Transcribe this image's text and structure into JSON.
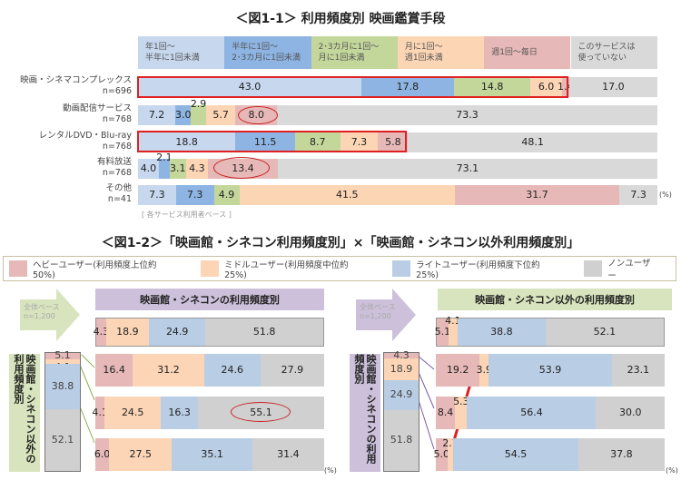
{
  "fig1": {
    "title": "＜図1-1＞ 利用頻度別 映画鑑賞手段",
    "note": "[ 各サービス利用者ベース ]",
    "unit": "(%)"
  },
  "fig2": {
    "title": "＜図1-2＞「映画館・シネコン利用頻度別」×「映画館・シネコン以外利用頻度別」",
    "unit": "(%)",
    "legend": [
      "ヘビーユーザー(利用頻度上位約50%)",
      "ミドルユーザー(利用頻度中位約25%)",
      "ライトユーザー(利用頻度下位約25%)",
      "ノンユーザー"
    ],
    "left": {
      "header": "映画館・シネコンの利用頻度別",
      "base": "全体ベース\nn=1,200",
      "vlabel": "映画館・シネコン以外の利用頻度別"
    },
    "right": {
      "header": "映画館・シネコン以外の利用頻度別",
      "base": "全体ベース\nn=1,200",
      "vlabel": "映画館・シネコンの利用頻度別"
    }
  },
  "chart_data": [
    {
      "type": "bar",
      "stacked": true,
      "orientation": "horizontal",
      "categories": [
        "映画・シネマコンプレックス\nn=696",
        "動画配信サービス\nn=768",
        "レンタルDVD・Blu-ray\nn=768",
        "有料放送\nn=768",
        "その他\nn=41"
      ],
      "series": [
        {
          "name": "年1回～\n半年に1回未満",
          "color": "#c6d7ee",
          "values": [
            43.0,
            7.2,
            18.8,
            4.0,
            7.3
          ]
        },
        {
          "name": "半年に1回～\n2･3カ月に1回未満",
          "color": "#8db4e2",
          "values": [
            17.8,
            3.0,
            11.5,
            2.1,
            7.3
          ]
        },
        {
          "name": "2･3カ月に1回～\n月に1回未満",
          "color": "#c4d79b",
          "values": [
            14.8,
            2.9,
            8.7,
            3.1,
            4.9
          ]
        },
        {
          "name": "月に1回～\n週1回未満",
          "color": "#fcd5b4",
          "values": [
            6.0,
            5.7,
            7.3,
            4.3,
            41.5
          ]
        },
        {
          "name": "週1回～毎日",
          "color": "#e6b9b8",
          "values": [
            1.4,
            8.0,
            5.8,
            13.4,
            31.7
          ]
        },
        {
          "name": "このサービスは\n使っていない",
          "color": "#d9d9d9",
          "values": [
            17.0,
            73.3,
            48.1,
            73.1,
            7.3
          ]
        }
      ],
      "xlim": [
        0,
        100
      ],
      "highlighted": [
        "8.0",
        "13.4"
      ]
    },
    {
      "type": "bar",
      "stacked": true,
      "orientation": "horizontal",
      "colors": [
        "#e6b8b7",
        "#fbd5b5",
        "#b9cde5",
        "#d0d0d0"
      ],
      "overall": [
        4.3,
        18.9,
        24.9,
        51.8
      ],
      "rows": [
        [
          16.4,
          31.2,
          24.6,
          27.9
        ],
        [
          4.1,
          24.5,
          16.3,
          55.1
        ],
        [
          6.0,
          27.5,
          35.1,
          31.4
        ]
      ],
      "segment_column": [
        5.1,
        4.1,
        38.8,
        52.1
      ],
      "highlighted": [
        "55.1"
      ]
    },
    {
      "type": "bar",
      "stacked": true,
      "orientation": "horizontal",
      "colors": [
        "#e6b8b7",
        "#fbd5b5",
        "#b9cde5",
        "#d0d0d0"
      ],
      "overall": [
        5.1,
        4.1,
        38.8,
        52.1
      ],
      "rows": [
        [
          19.2,
          3.9,
          53.9,
          23.1
        ],
        [
          8.4,
          5.3,
          56.4,
          30.0
        ],
        [
          5.0,
          2.7,
          54.5,
          37.8
        ]
      ],
      "segment_column": [
        4.3,
        18.9,
        24.9,
        51.8
      ]
    }
  ]
}
